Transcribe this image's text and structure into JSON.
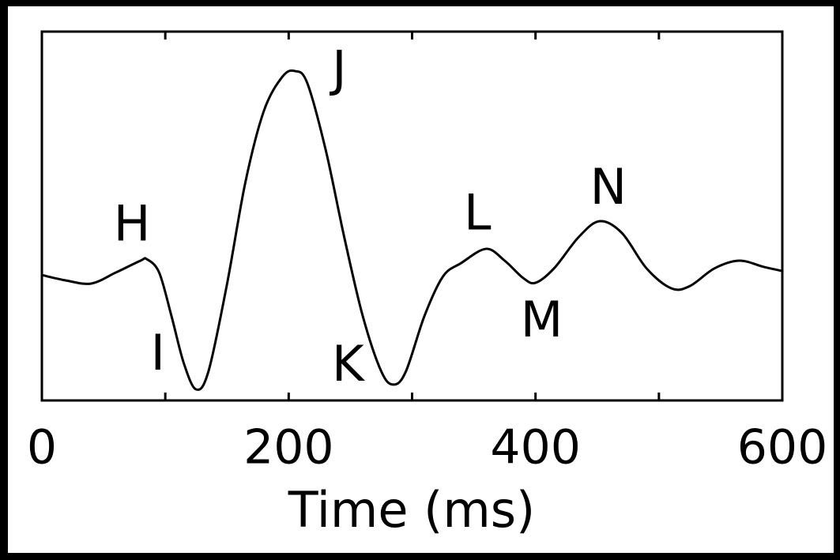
{
  "chart_data": {
    "type": "line",
    "xlabel": "Time (ms)",
    "x": [
      0,
      20,
      40,
      60,
      80,
      85,
      95,
      105,
      115,
      125,
      135,
      150,
      165,
      180,
      195,
      205,
      215,
      230,
      245,
      260,
      275,
      285,
      295,
      310,
      325,
      340,
      360,
      375,
      390,
      400,
      415,
      435,
      452,
      470,
      490,
      510,
      525,
      545,
      565,
      585,
      600
    ],
    "series": [
      {
        "color": "#000000",
        "values": [
          34.0,
          32.5,
          31.7,
          34.7,
          37.9,
          38.3,
          34.7,
          22.9,
          10.1,
          3.0,
          7.9,
          31.5,
          59.3,
          78.6,
          87.8,
          89.3,
          86.1,
          67.9,
          44.3,
          22.9,
          7.9,
          4.3,
          7.9,
          22.9,
          33.6,
          37.3,
          41.1,
          37.9,
          33.2,
          31.9,
          35.8,
          44.3,
          48.6,
          45.4,
          35.8,
          30.4,
          31.0,
          35.8,
          37.9,
          36.2,
          35.1
        ]
      }
    ],
    "xlim": [
      0,
      600
    ],
    "xticks": [
      0,
      200,
      400,
      600
    ],
    "xminor_ticks": [
      100,
      300,
      500
    ],
    "ylim": [
      0,
      100
    ],
    "annotations": [
      {
        "text": "H",
        "x": 73,
        "y": 47
      },
      {
        "text": "I",
        "x": 94,
        "y": 12
      },
      {
        "text": "J",
        "x": 241,
        "y": 89
      },
      {
        "text": "K",
        "x": 248,
        "y": 9
      },
      {
        "text": "L",
        "x": 353,
        "y": 50
      },
      {
        "text": "M",
        "x": 405,
        "y": 21
      },
      {
        "text": "N",
        "x": 459,
        "y": 57
      }
    ]
  }
}
